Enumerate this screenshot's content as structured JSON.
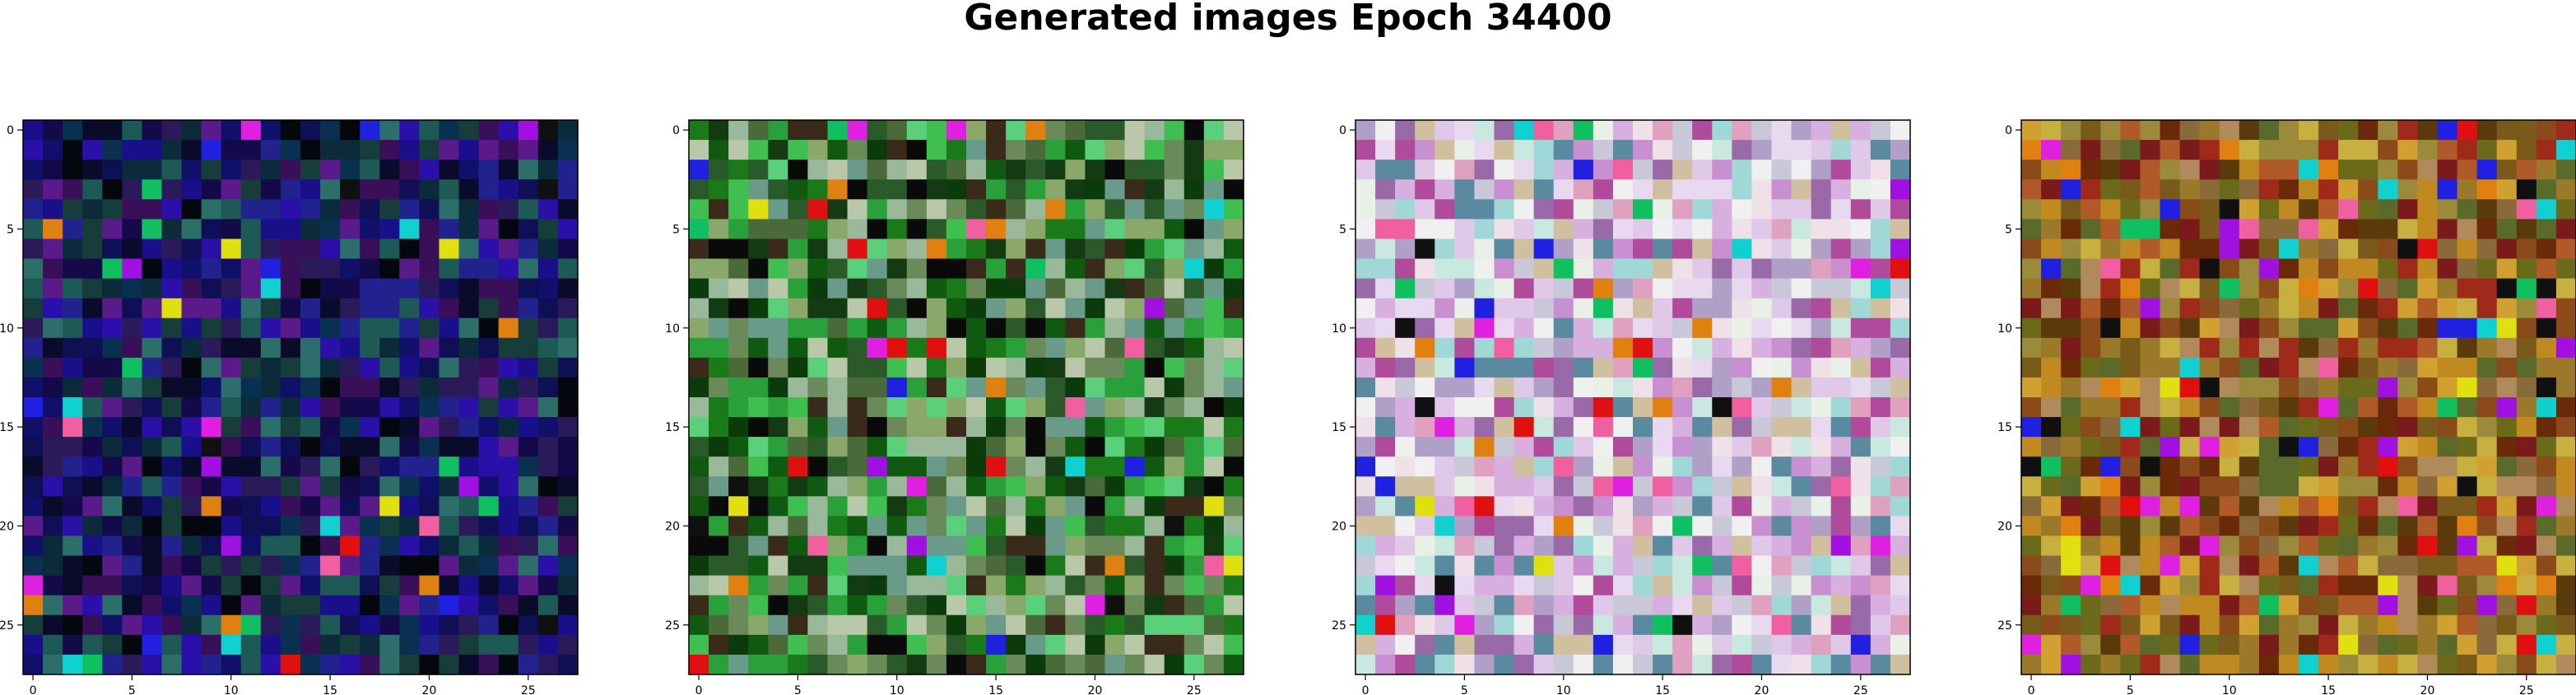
{
  "figure": {
    "title": "Generated images Epoch 34400"
  },
  "palettes": {
    "dark_blue": [
      "#05070f",
      "#0a0a2a",
      "#10106a",
      "#1a0f8a",
      "#2a10a8",
      "#140a4a",
      "#0b2a3a",
      "#173d3a",
      "#2a1a5a",
      "#3a0f5a",
      "#5a1a8a",
      "#0a3050",
      "#1d5a55",
      "#2c6e6a",
      "#0f0f55",
      "#22228f"
    ],
    "green": [
      "#0a0a0a",
      "#0b3a0b",
      "#0f5a10",
      "#1a7a1a",
      "#2aa03a",
      "#3fbf4f",
      "#5ad07a",
      "#6a8a5a",
      "#8aa86a",
      "#2a5a2a",
      "#143a14",
      "#9ab89a",
      "#6a9a8a",
      "#4a6a3a",
      "#b8c8a8",
      "#3a2a1a"
    ],
    "pastel": [
      "#f0f0f0",
      "#e8d8f0",
      "#d8b0e0",
      "#c890d0",
      "#b0a0c8",
      "#f0e0e8",
      "#e0c8e8",
      "#a0d8d8",
      "#c8e8e0",
      "#d0c0a0",
      "#e8f0e8",
      "#9a6aa8",
      "#b04a9a",
      "#5a8aa0",
      "#e0a0c0",
      "#c8c8d8"
    ],
    "warm": [
      "#5a3a0a",
      "#7a5a1a",
      "#9a7a2a",
      "#c08a20",
      "#d0a030",
      "#6a6a1a",
      "#8a6a3a",
      "#b05a2a",
      "#a02a1a",
      "#7a1a1a",
      "#c8b040",
      "#9a8a3a",
      "#5a6a2a",
      "#8a4a1a",
      "#b08a5a",
      "#6a2a0a"
    ],
    "accents": [
      "#e01010",
      "#10c060",
      "#2020e0",
      "#e020e0",
      "#10d0d0",
      "#e0e010",
      "#101010",
      "#a010e0",
      "#e08010",
      "#f060a0"
    ]
  },
  "chart_data": [
    {
      "type": "heatmap",
      "title": "",
      "grid_size": 28,
      "palette": "dark_blue",
      "seed": 11,
      "accent_rate": 0.05,
      "xticks": [
        0,
        5,
        10,
        15,
        20,
        25
      ],
      "yticks": [
        0,
        5,
        10,
        15,
        20,
        25
      ],
      "xlabels": [
        "0",
        "5",
        "10",
        "15",
        "20",
        "25"
      ],
      "ylabels": [
        "0",
        "5",
        "10",
        "15",
        "20",
        "25"
      ]
    },
    {
      "type": "heatmap",
      "title": "",
      "grid_size": 28,
      "palette": "green",
      "seed": 29,
      "accent_rate": 0.05,
      "xticks": [
        0,
        5,
        10,
        15,
        20,
        25
      ],
      "yticks": [
        0,
        5,
        10,
        15,
        20,
        25
      ],
      "xlabels": [
        "0",
        "5",
        "10",
        "15",
        "20",
        "25"
      ],
      "ylabels": [
        "0",
        "5",
        "10",
        "15",
        "20",
        "25"
      ]
    },
    {
      "type": "heatmap",
      "title": "",
      "grid_size": 28,
      "palette": "pastel",
      "seed": 47,
      "accent_rate": 0.09,
      "xticks": [
        0,
        5,
        10,
        15,
        20,
        25
      ],
      "yticks": [
        0,
        5,
        10,
        15,
        20,
        25
      ],
      "xlabels": [
        "0",
        "5",
        "10",
        "15",
        "20",
        "25"
      ],
      "ylabels": [
        "0",
        "5",
        "10",
        "15",
        "20",
        "25"
      ]
    },
    {
      "type": "heatmap",
      "title": "",
      "grid_size": 28,
      "palette": "warm",
      "seed": 83,
      "accent_rate": 0.14,
      "xticks": [
        0,
        5,
        10,
        15,
        20,
        25
      ],
      "yticks": [
        0,
        5,
        10,
        15,
        20,
        25
      ],
      "xlabels": [
        "0",
        "5",
        "10",
        "15",
        "20",
        "25"
      ],
      "ylabels": [
        "0",
        "5",
        "10",
        "15",
        "20",
        "25"
      ]
    }
  ]
}
